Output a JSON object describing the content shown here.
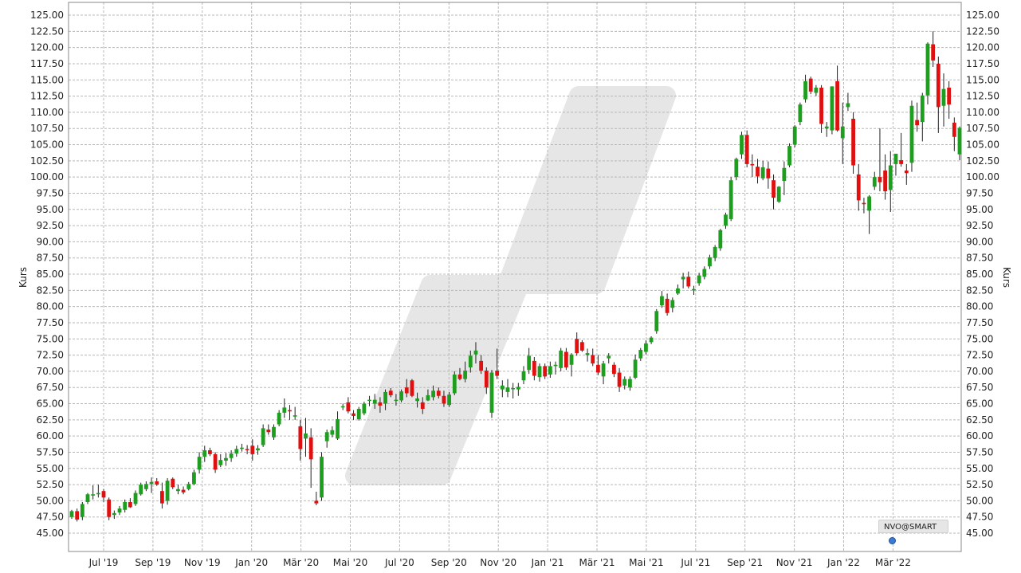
{
  "chart_data": {
    "type": "candlestick",
    "ylabel": "Kurs",
    "ylim": [
      45,
      125
    ],
    "yticks": [
      "45.00",
      "47.50",
      "50.00",
      "52.50",
      "55.00",
      "57.50",
      "60.00",
      "62.50",
      "65.00",
      "67.50",
      "70.00",
      "72.50",
      "75.00",
      "77.50",
      "80.00",
      "82.50",
      "85.00",
      "87.50",
      "90.00",
      "92.50",
      "95.00",
      "97.50",
      "100.00",
      "102.50",
      "105.00",
      "107.50",
      "110.00",
      "112.50",
      "115.00",
      "117.50",
      "120.00",
      "122.50",
      "125.00"
    ],
    "xticks": [
      "Jul '19",
      "Sep '19",
      "Nov '19",
      "Jan '20",
      "Mär '20",
      "Mai '20",
      "Jul '20",
      "Sep '20",
      "Nov '20",
      "Jan '21",
      "Mär '21",
      "Mai '21",
      "Jul '21",
      "Sep '21",
      "Nov '21",
      "Jan '22",
      "Mär '22"
    ],
    "up_color": "#1e9e1e",
    "down_color": "#e01010",
    "grid": true,
    "watermark_label": "NVO@SMART",
    "candles": [
      [
        47.5,
        48.6,
        47.2,
        48.4
      ],
      [
        48.4,
        48.8,
        46.8,
        47.1
      ],
      [
        47.5,
        49.8,
        47.0,
        49.5
      ],
      [
        49.8,
        51.2,
        49.5,
        51.0
      ],
      [
        50.8,
        52.4,
        50.2,
        51.0
      ],
      [
        51.0,
        52.5,
        50.5,
        51.2
      ],
      [
        51.5,
        51.8,
        49.8,
        50.5
      ],
      [
        50.2,
        50.5,
        47.0,
        47.5
      ],
      [
        47.8,
        48.5,
        47.2,
        48.1
      ],
      [
        48.2,
        49.2,
        47.8,
        48.8
      ],
      [
        48.6,
        50.2,
        48.2,
        49.8
      ],
      [
        49.8,
        50.4,
        48.9,
        49.0
      ],
      [
        49.5,
        51.6,
        49.2,
        51.2
      ],
      [
        51.0,
        52.8,
        50.8,
        52.5
      ],
      [
        51.8,
        53.0,
        51.5,
        52.6
      ],
      [
        52.6,
        53.6,
        51.2,
        52.9
      ],
      [
        53.0,
        53.5,
        52.3,
        52.5
      ],
      [
        51.5,
        52.8,
        48.8,
        49.6
      ],
      [
        50.0,
        53.5,
        49.4,
        53.1
      ],
      [
        53.4,
        53.6,
        51.8,
        52.1
      ],
      [
        51.5,
        52.5,
        51.0,
        51.8
      ],
      [
        51.7,
        52.2,
        51.0,
        51.3
      ],
      [
        51.8,
        52.9,
        51.6,
        52.6
      ],
      [
        52.6,
        54.8,
        52.4,
        54.4
      ],
      [
        54.8,
        57.5,
        54.2,
        56.8
      ],
      [
        56.8,
        58.5,
        56.0,
        57.8
      ],
      [
        57.8,
        58.2,
        56.9,
        57.2
      ],
      [
        57.2,
        57.5,
        54.3,
        54.8
      ],
      [
        55.5,
        57.2,
        55.2,
        56.3
      ],
      [
        56.2,
        57.4,
        55.4,
        56.6
      ],
      [
        56.6,
        57.8,
        56.0,
        57.3
      ],
      [
        57.3,
        58.5,
        56.8,
        58.0
      ],
      [
        58.1,
        58.8,
        57.6,
        58.2
      ],
      [
        58.0,
        58.6,
        57.2,
        57.9
      ],
      [
        58.5,
        59.5,
        56.2,
        57.2
      ],
      [
        57.8,
        58.6,
        57.1,
        58.1
      ],
      [
        58.6,
        61.8,
        58.3,
        61.2
      ],
      [
        61.0,
        61.8,
        60.2,
        60.6
      ],
      [
        59.8,
        61.8,
        59.4,
        61.4
      ],
      [
        61.8,
        64.0,
        61.5,
        63.6
      ],
      [
        63.6,
        65.8,
        62.8,
        64.4
      ],
      [
        64.0,
        64.8,
        62.5,
        63.8
      ],
      [
        63.0,
        64.5,
        62.5,
        63.2
      ],
      [
        61.5,
        62.5,
        56.2,
        58.0
      ],
      [
        59.6,
        62.8,
        56.8,
        60.4
      ],
      [
        59.8,
        61.2,
        52.0,
        56.4
      ],
      [
        50.0,
        51.4,
        49.3,
        49.6
      ],
      [
        50.5,
        57.5,
        50.0,
        56.8
      ],
      [
        59.2,
        61.0,
        58.2,
        60.6
      ],
      [
        60.2,
        61.5,
        59.8,
        60.9
      ],
      [
        59.6,
        63.8,
        59.4,
        62.6
      ],
      [
        64.5,
        65.0,
        64.0,
        64.6
      ],
      [
        65.2,
        66.0,
        63.5,
        63.8
      ],
      [
        63.5,
        64.0,
        62.5,
        63.1
      ],
      [
        62.6,
        64.5,
        62.4,
        64.2
      ],
      [
        63.5,
        65.3,
        63.2,
        65.0
      ],
      [
        65.5,
        66.2,
        64.6,
        65.6
      ],
      [
        65.0,
        66.5,
        64.2,
        65.6
      ],
      [
        65.2,
        66.0,
        63.6,
        64.7
      ],
      [
        65.0,
        67.2,
        64.0,
        66.8
      ],
      [
        67.0,
        67.4,
        66.0,
        66.3
      ],
      [
        65.6,
        66.5,
        64.7,
        65.6
      ],
      [
        65.5,
        67.2,
        65.2,
        66.9
      ],
      [
        67.5,
        68.8,
        66.0,
        66.6
      ],
      [
        68.6,
        68.8,
        66.0,
        66.2
      ],
      [
        65.4,
        66.7,
        64.4,
        65.8
      ],
      [
        65.2,
        66.0,
        63.4,
        64.2
      ],
      [
        65.5,
        67.2,
        65.4,
        66.3
      ],
      [
        66.0,
        67.8,
        65.5,
        67.0
      ],
      [
        67.0,
        67.5,
        65.8,
        66.2
      ],
      [
        66.2,
        67.0,
        64.5,
        65.0
      ],
      [
        64.8,
        66.8,
        64.5,
        66.4
      ],
      [
        66.6,
        70.0,
        66.3,
        69.5
      ],
      [
        69.5,
        70.5,
        68.6,
        68.8
      ],
      [
        68.8,
        71.5,
        68.3,
        70.1
      ],
      [
        70.6,
        73.2,
        69.8,
        72.4
      ],
      [
        72.6,
        74.5,
        71.2,
        73.2
      ],
      [
        71.6,
        72.5,
        69.6,
        70.1
      ],
      [
        70.1,
        70.6,
        66.5,
        67.5
      ],
      [
        63.6,
        70.2,
        62.8,
        69.8
      ],
      [
        70.1,
        73.5,
        68.8,
        69.3
      ],
      [
        67.2,
        68.6,
        66.0,
        67.8
      ],
      [
        66.8,
        68.8,
        66.0,
        67.5
      ],
      [
        67.3,
        68.2,
        65.8,
        67.4
      ],
      [
        67.2,
        68.2,
        66.2,
        67.6
      ],
      [
        68.6,
        70.8,
        68.0,
        70.0
      ],
      [
        70.2,
        73.6,
        69.6,
        72.4
      ],
      [
        71.6,
        72.2,
        68.6,
        69.3
      ],
      [
        69.1,
        71.2,
        68.4,
        70.8
      ],
      [
        70.8,
        71.2,
        68.8,
        69.2
      ],
      [
        69.5,
        71.5,
        69.0,
        70.8
      ],
      [
        70.8,
        71.5,
        69.5,
        71.0
      ],
      [
        70.5,
        73.6,
        70.0,
        73.2
      ],
      [
        73.0,
        73.6,
        70.2,
        70.6
      ],
      [
        71.0,
        72.8,
        69.2,
        72.6
      ],
      [
        75.0,
        76.0,
        72.4,
        72.8
      ],
      [
        74.5,
        74.8,
        73.0,
        73.2
      ],
      [
        72.5,
        73.5,
        71.5,
        72.8
      ],
      [
        72.5,
        73.5,
        70.8,
        71.2
      ],
      [
        71.0,
        72.5,
        69.4,
        69.8
      ],
      [
        69.2,
        71.6,
        68.0,
        71.2
      ],
      [
        72.0,
        72.8,
        71.2,
        72.4
      ],
      [
        71.0,
        71.4,
        69.1,
        69.6
      ],
      [
        69.8,
        70.5,
        66.8,
        67.6
      ],
      [
        67.8,
        69.2,
        67.2,
        68.8
      ],
      [
        67.5,
        69.2,
        67.0,
        68.8
      ],
      [
        69.0,
        72.6,
        68.8,
        71.8
      ],
      [
        72.0,
        73.6,
        71.6,
        73.3
      ],
      [
        73.0,
        74.8,
        72.6,
        74.3
      ],
      [
        74.5,
        75.4,
        74.2,
        75.2
      ],
      [
        76.2,
        79.6,
        75.8,
        79.3
      ],
      [
        80.2,
        82.4,
        79.8,
        81.6
      ],
      [
        81.2,
        82.0,
        78.6,
        79.0
      ],
      [
        79.8,
        81.4,
        79.1,
        81.0
      ],
      [
        82.0,
        83.4,
        81.8,
        82.8
      ],
      [
        84.2,
        85.2,
        82.8,
        84.6
      ],
      [
        84.6,
        85.4,
        82.8,
        83.1
      ],
      [
        82.5,
        83.2,
        81.8,
        82.7
      ],
      [
        83.6,
        85.2,
        83.2,
        84.8
      ],
      [
        84.6,
        86.2,
        84.2,
        85.8
      ],
      [
        86.2,
        88.0,
        85.8,
        87.6
      ],
      [
        87.5,
        89.5,
        87.0,
        89.2
      ],
      [
        89.0,
        92.0,
        88.6,
        91.8
      ],
      [
        92.5,
        94.5,
        92.0,
        94.2
      ],
      [
        93.5,
        100.0,
        93.2,
        99.5
      ],
      [
        100.0,
        103.0,
        99.5,
        102.8
      ],
      [
        103.5,
        107.0,
        102.8,
        106.5
      ],
      [
        106.5,
        107.2,
        101.5,
        102.0
      ],
      [
        102.0,
        103.5,
        100.0,
        101.8
      ],
      [
        101.6,
        102.8,
        99.0,
        100.1
      ],
      [
        99.8,
        102.5,
        99.5,
        101.5
      ],
      [
        101.3,
        102.4,
        98.2,
        99.8
      ],
      [
        99.5,
        100.4,
        95.0,
        96.8
      ],
      [
        96.2,
        98.6,
        96.0,
        98.5
      ],
      [
        99.4,
        102.4,
        97.2,
        101.4
      ],
      [
        101.8,
        105.2,
        101.5,
        104.8
      ],
      [
        105.0,
        108.0,
        104.6,
        107.8
      ],
      [
        108.5,
        111.5,
        108.0,
        111.2
      ],
      [
        112.0,
        115.8,
        111.5,
        114.8
      ],
      [
        115.2,
        115.5,
        112.8,
        113.2
      ],
      [
        113.0,
        114.2,
        112.5,
        113.8
      ],
      [
        113.8,
        114.2,
        106.8,
        108.2
      ],
      [
        107.5,
        108.5,
        106.2,
        107.8
      ],
      [
        107.2,
        114.0,
        106.6,
        114.0
      ],
      [
        114.8,
        117.2,
        107.0,
        107.2
      ],
      [
        106.0,
        111.5,
        102.0,
        107.8
      ],
      [
        110.8,
        113.0,
        110.2,
        111.4
      ],
      [
        109.0,
        110.0,
        100.5,
        101.8
      ],
      [
        100.4,
        102.0,
        94.8,
        96.4
      ],
      [
        96.0,
        96.8,
        94.4,
        95.8
      ],
      [
        94.8,
        97.2,
        91.2,
        97.0
      ],
      [
        98.5,
        100.8,
        98.0,
        100.0
      ],
      [
        100.0,
        107.5,
        97.8,
        99.2
      ],
      [
        101.0,
        103.5,
        96.5,
        97.8
      ],
      [
        98.0,
        104.0,
        94.6,
        101.8
      ],
      [
        102.0,
        103.2,
        100.2,
        103.6
      ],
      [
        102.6,
        106.8,
        101.6,
        102.0
      ],
      [
        101.0,
        102.0,
        98.8,
        100.6
      ],
      [
        102.2,
        111.8,
        100.8,
        111.0
      ],
      [
        108.8,
        111.5,
        107.0,
        108.0
      ],
      [
        108.5,
        113.0,
        105.5,
        112.6
      ],
      [
        112.6,
        120.8,
        111.2,
        120.6
      ],
      [
        120.5,
        122.5,
        117.0,
        118.0
      ],
      [
        117.5,
        118.6,
        106.8,
        110.8
      ],
      [
        111.0,
        116.0,
        107.8,
        113.6
      ],
      [
        113.8,
        114.8,
        109.0,
        111.2
      ],
      [
        108.4,
        109.2,
        104.0,
        106.2
      ],
      [
        103.5,
        107.8,
        102.6,
        107.6
      ]
    ]
  }
}
